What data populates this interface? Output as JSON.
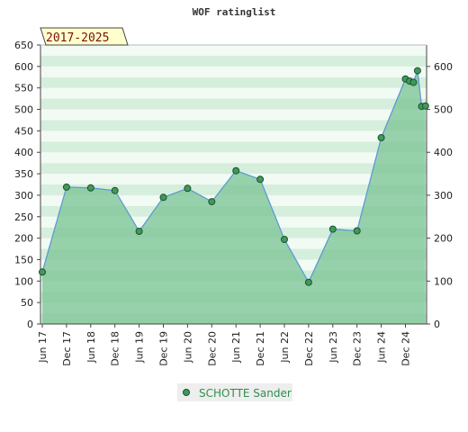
{
  "chart_data": {
    "type": "area",
    "title": "WOF ratinglist",
    "badge": "2017-2025",
    "ylim": [
      0,
      650
    ],
    "ylim_right": [
      0,
      650
    ],
    "yticks": [
      0,
      50,
      100,
      150,
      200,
      250,
      300,
      350,
      400,
      450,
      500,
      550,
      600,
      650
    ],
    "yticks_right": [
      0,
      100,
      200,
      300,
      400,
      500,
      600
    ],
    "xticks": [
      "Jun 17",
      "Dec 17",
      "Jun 18",
      "Dec 18",
      "Jun 19",
      "Dec 19",
      "Jun 20",
      "Dec 20",
      "Jun 21",
      "Dec 21",
      "Jun 22",
      "Dec 22",
      "Jun 23",
      "Dec 23",
      "Jun 24",
      "Dec 24"
    ],
    "xlim": [
      0,
      15.8
    ],
    "colors": {
      "fill": "#7dc596",
      "line": "#5b9bd5",
      "marker": "#3f9a5a",
      "badge_bg": "#ffffcc",
      "badge_text": "#7a1010",
      "legend_text": "#2f8f4f"
    },
    "series": [
      {
        "name": "SCHOTTE Sander",
        "x": [
          0,
          1,
          2,
          3,
          4,
          5,
          6,
          7,
          8,
          9,
          10,
          11,
          12,
          13,
          14,
          15,
          15.17,
          15.33,
          15.5,
          15.67,
          15.83
        ],
        "values": [
          121,
          319,
          317,
          311,
          216,
          295,
          316,
          285,
          357,
          337,
          197,
          97,
          221,
          217,
          434,
          571,
          566,
          563,
          590,
          507,
          508
        ]
      }
    ],
    "legend": "bottom"
  }
}
